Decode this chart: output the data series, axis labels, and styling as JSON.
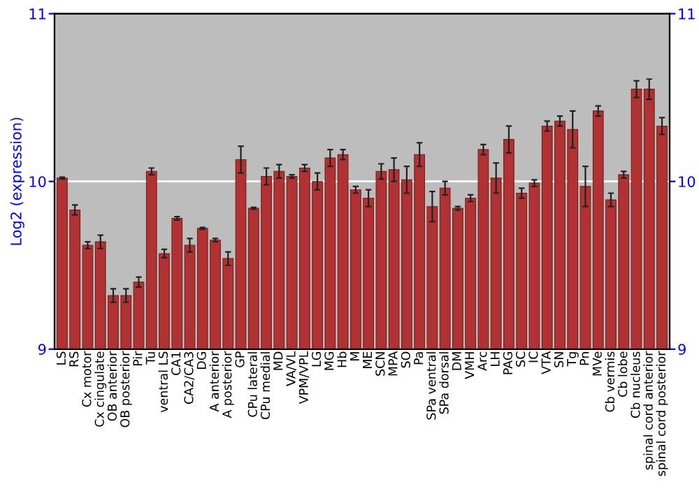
{
  "chart_data": {
    "type": "bar",
    "ylabel": "Log2 (expression)",
    "categories": [
      "LS",
      "RS",
      "Cx motor",
      "Cx cingulate",
      "OB anterior",
      "OB posterior",
      "Pir",
      "Tu",
      "ventral LS",
      "CA1",
      "CA2/CA3",
      "DG",
      "A anterior",
      "A posterior",
      "GP",
      "CPu lateral",
      "CPu medial",
      "MD",
      "VA/VL",
      "VPM/VPL",
      "LG",
      "MG",
      "Hb",
      "M",
      "ME",
      "SCN",
      "MPA",
      "SO",
      "Pa",
      "SPa ventral",
      "SPa dorsal",
      "DM",
      "VMH",
      "Arc",
      "LH",
      "PAG",
      "SC",
      "IC",
      "VTA",
      "SN",
      "Tg",
      "Pn",
      "MVe",
      "Cb vermis",
      "Cb lobe",
      "Cb nucleus",
      "spinal cord anterior",
      "spinal cord posterior"
    ],
    "values": [
      10.02,
      9.83,
      9.62,
      9.64,
      9.32,
      9.32,
      9.4,
      10.06,
      9.57,
      9.78,
      9.62,
      9.72,
      9.65,
      9.54,
      10.13,
      9.84,
      10.03,
      10.06,
      10.03,
      10.08,
      10.0,
      10.14,
      10.16,
      9.95,
      9.9,
      10.06,
      10.07,
      10.01,
      10.16,
      9.85,
      9.96,
      9.84,
      9.9,
      10.19,
      10.02,
      10.25,
      9.93,
      9.99,
      10.33,
      10.36,
      10.31,
      9.97,
      10.42,
      9.89,
      10.04,
      10.55,
      10.55,
      10.33
    ],
    "errors": [
      0.005,
      0.03,
      0.02,
      0.04,
      0.04,
      0.04,
      0.03,
      0.02,
      0.025,
      0.01,
      0.04,
      0.005,
      0.01,
      0.04,
      0.08,
      0.005,
      0.05,
      0.04,
      0.01,
      0.02,
      0.05,
      0.05,
      0.03,
      0.02,
      0.05,
      0.045,
      0.07,
      0.08,
      0.07,
      0.09,
      0.04,
      0.01,
      0.02,
      0.03,
      0.09,
      0.08,
      0.03,
      0.02,
      0.03,
      0.03,
      0.11,
      0.12,
      0.03,
      0.04,
      0.02,
      0.05,
      0.06,
      0.05
    ],
    "color": "#b03232",
    "ylim": [
      9,
      11
    ],
    "yticks": [
      9,
      10,
      11
    ],
    "y2lim": [
      9,
      11
    ],
    "y2ticks": [
      9,
      10,
      11
    ],
    "grid": "y"
  }
}
